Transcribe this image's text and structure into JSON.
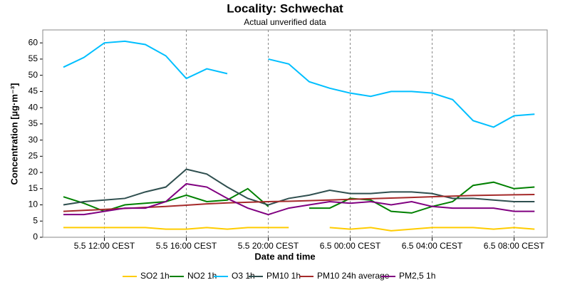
{
  "chart_data": {
    "type": "line",
    "title": "Locality: Schwechat",
    "subtitle": "Actual unverified data",
    "x_label": "Date and time",
    "y_label": "Concentration [µg·m⁻³]",
    "categories": [
      null,
      null,
      "5.5 12:00 CEST",
      null,
      null,
      null,
      "5.5 16:00 CEST",
      null,
      null,
      null,
      "5.5 20:00 CEST",
      null,
      null,
      null,
      "6.5 00:00 CEST",
      null,
      null,
      null,
      "6.5 04:00 CEST",
      null,
      null,
      null,
      "6.5 08:00 CEST",
      null
    ],
    "ylim": [
      0,
      64
    ],
    "yticks": [
      0,
      5,
      10,
      15,
      20,
      25,
      30,
      35,
      40,
      45,
      50,
      55,
      60
    ],
    "grid": true,
    "legend": "bottom",
    "series": [
      {
        "name": "SO2 1h",
        "color": "#ffcc00",
        "values": [
          3,
          3,
          3,
          3,
          3,
          2.5,
          2.5,
          3,
          2.5,
          3,
          3,
          3,
          null,
          3,
          2.5,
          3,
          2,
          2.5,
          3,
          3,
          3,
          2.5,
          3,
          2.5
        ]
      },
      {
        "name": "NO2 1h",
        "color": "#008000",
        "values": [
          12.5,
          10.5,
          8,
          10,
          10.5,
          11,
          13,
          11,
          11.5,
          15,
          9.5,
          null,
          9,
          9,
          12,
          11.5,
          8,
          7.5,
          9.5,
          11,
          16,
          17,
          15,
          15.5
        ]
      },
      {
        "name": "O3 1h",
        "color": "#00bfff",
        "values": [
          52.5,
          55.5,
          60,
          60.5,
          59.5,
          56,
          49,
          52,
          50.5,
          null,
          55,
          53.5,
          48,
          46,
          44.5,
          43.5,
          45,
          45,
          44.5,
          42.5,
          36,
          34,
          37.5,
          38
        ]
      },
      {
        "name": "PM10 1h",
        "color": "#2f4f4f",
        "values": [
          10,
          11,
          11.5,
          12,
          14,
          15.5,
          21,
          19.5,
          15.5,
          12,
          10,
          12,
          13,
          14.5,
          13.5,
          13.5,
          14,
          14,
          13.5,
          12,
          12,
          11.5,
          11,
          11
        ]
      },
      {
        "name": "PM10 24h average",
        "color": "#a52a2a",
        "values": [
          8,
          8.3,
          8.6,
          8.9,
          9.2,
          9.5,
          9.9,
          10.3,
          10.6,
          10.8,
          11,
          11.1,
          11.3,
          11.5,
          11.7,
          11.9,
          12.1,
          12.3,
          12.5,
          12.7,
          12.9,
          13,
          13.1,
          13.2
        ]
      },
      {
        "name": "PM2,5 1h",
        "color": "#800080",
        "values": [
          7,
          7,
          8,
          9,
          9,
          11,
          16.5,
          15.5,
          12,
          9,
          7,
          9,
          10,
          11,
          10.5,
          11,
          10,
          11,
          9.5,
          9,
          9,
          9,
          8,
          8
        ]
      }
    ]
  }
}
